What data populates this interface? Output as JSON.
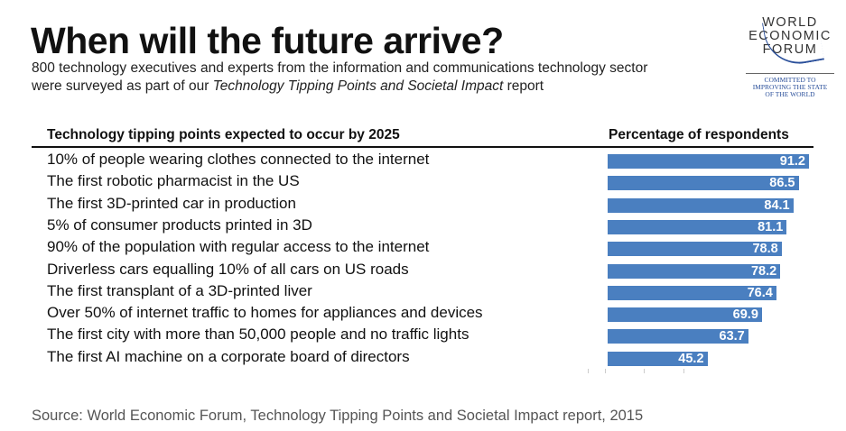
{
  "title": "When will the future arrive?",
  "subtitle_line1": "800 technology executives and experts from the information and communications technology sector",
  "subtitle_line2_prefix": "were surveyed as part of our ",
  "subtitle_line2_italic": "Technology Tipping Points and Societal Impact",
  "subtitle_line2_suffix": " report",
  "logo": {
    "lines": [
      "WORLD",
      "ECONOMIC",
      "FORUM"
    ],
    "tagline": [
      "COMMITTED TO",
      "IMPROVING THE STATE",
      "OF THE WORLD"
    ]
  },
  "source": "Source: World Economic Forum, Technology Tipping Points and Societal Impact report, 2015",
  "chart_data": {
    "type": "bar",
    "orientation": "horizontal",
    "category_header": "Technology tipping points expected to occur by 2025",
    "value_header": "Percentage of respondents",
    "categories": [
      "10% of people wearing clothes connected to the internet",
      "The first robotic pharmacist in the US",
      "The first 3D-printed car in production",
      "5% of consumer products printed in 3D",
      "90% of the population with regular access to the internet",
      "Driverless cars equalling 10% of all cars on US roads",
      "The first transplant of a 3D-printed liver",
      "Over 50% of internet traffic to homes for appliances and devices",
      "The first city with more than 50,000 people and no traffic lights",
      "The first AI machine on a corporate board of directors"
    ],
    "values": [
      91.2,
      86.5,
      84.1,
      81.1,
      78.8,
      78.2,
      76.4,
      69.9,
      63.7,
      45.2
    ],
    "xlim": [
      0,
      100
    ],
    "bar_color": "#4a7fc0",
    "grid": false
  }
}
